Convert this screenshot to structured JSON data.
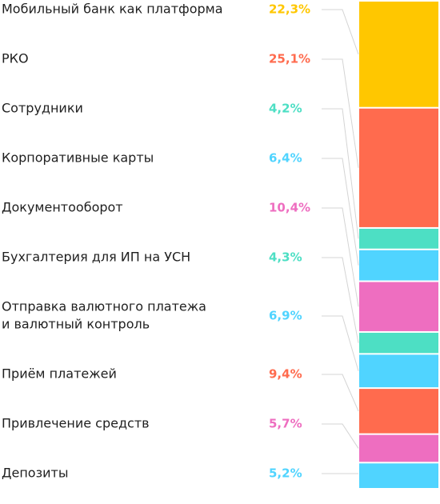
{
  "chart_data": {
    "type": "bar",
    "stacked": true,
    "orientation": "vertical",
    "categories": [
      "Мобильный банк как платформа",
      "РКО",
      "Сотрудники",
      "Корпоративные карты",
      "Документооборот",
      "Бухгалтерия для ИП на УСН",
      "Отправка валютного платежа и валютный контроль",
      "Приём платежей",
      "Привлечение средств",
      "Депозиты"
    ],
    "label_lines": [
      [
        "Мобильный банк как платформа"
      ],
      [
        "РКО"
      ],
      [
        "Сотрудники"
      ],
      [
        "Корпоративные карты"
      ],
      [
        "Документооборот"
      ],
      [
        "Бухгалтерия для ИП на УСН"
      ],
      [
        "Отправка валютного платежа",
        "и валютный контроль"
      ],
      [
        "Приём платежей"
      ],
      [
        "Привлечение средств"
      ],
      [
        "Депозиты"
      ]
    ],
    "values": [
      22.3,
      25.1,
      4.2,
      6.4,
      10.4,
      4.3,
      6.9,
      9.4,
      5.7,
      5.2
    ],
    "value_labels": [
      "22,3%",
      "25,1%",
      "4,2%",
      "6,4%",
      "10,4%",
      "4,3%",
      "6,9%",
      "9,4%",
      "5,7%",
      "5,2%"
    ],
    "colors": [
      "#ffc700",
      "#ff6b4e",
      "#4ddfc4",
      "#50d4ff",
      "#ee6ec0",
      "#4ddfc4",
      "#50d4ff",
      "#ff6b4e",
      "#ee6ec0",
      "#50d4ff"
    ],
    "unit": "%",
    "legend": "left"
  }
}
